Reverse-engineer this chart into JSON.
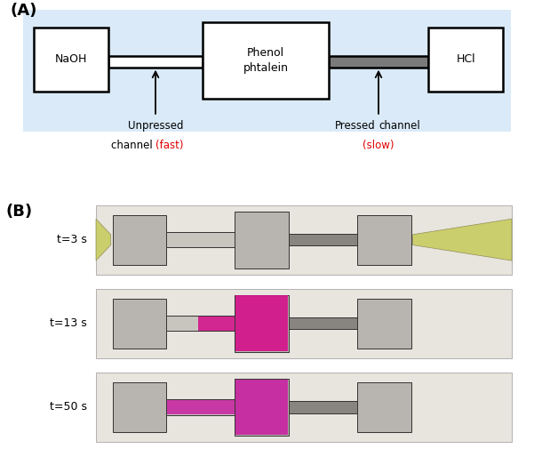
{
  "panel_A_label": "(A)",
  "panel_B_label": "(B)",
  "bg_color_A": "#daeaf8",
  "box_facecolor": "white",
  "box_edgecolor": "black",
  "pressed_channel_color": "#7a7a7a",
  "naoh_label": "NaOH",
  "hcl_label": "HCl",
  "phenol_label": "Phenol\nphtalein",
  "unpressed_black1": "Unpressed",
  "unpressed_black2": "channel ",
  "unpressed_red": "(fast)",
  "pressed_black": "Pressed channel",
  "pressed_red": "(slow)",
  "time_labels": [
    "t=3 s",
    "t=13 s",
    "t=50 s"
  ],
  "fig_bg": "white",
  "arrow_color": "black",
  "text_black": "black",
  "text_red": "#e00000",
  "lw": 1.8,
  "photo_bg": "#d4cfc8",
  "chip_body": "#b8b5b0",
  "chip_edge": "#333333",
  "chip_channel_light": "#c8c4be",
  "chip_channel_pressed": "#888480",
  "paper_bg": "#e8e4de",
  "pink_bright": "#d4108a",
  "pink_mid": "#c820a0",
  "tube_yellow": "#c8cc60"
}
